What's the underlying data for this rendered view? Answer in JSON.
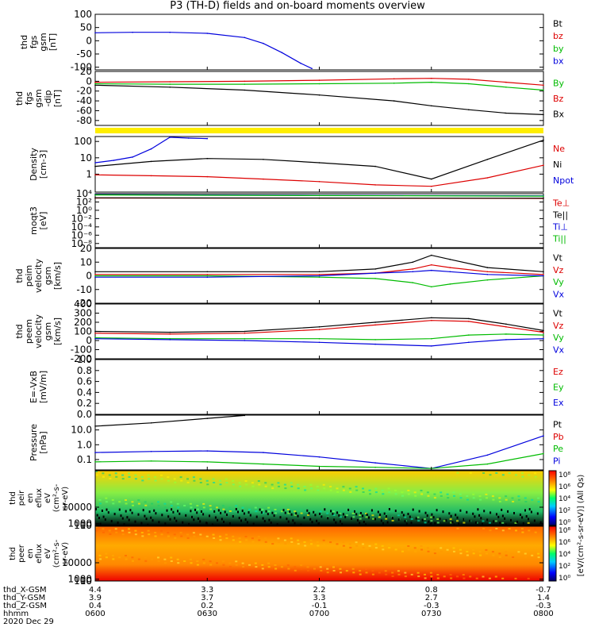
{
  "title": "P3 (TH-D) fields and on-board moments overview",
  "chart_data": [
    {
      "id": "fgs_b",
      "type": "line",
      "ylabel": [
        "thd",
        "fgs",
        "gsm",
        "[nT]"
      ],
      "ylim": [
        -110,
        100
      ],
      "yticks": [
        "100",
        "50",
        "0",
        "-50",
        "-100"
      ],
      "ytick_values": [
        100,
        50,
        0,
        -50,
        -100
      ],
      "legend": [
        {
          "name": "Bt",
          "color": "#000000"
        },
        {
          "name": "bz",
          "color": "#dd0000"
        },
        {
          "name": "by",
          "color": "#00bb00"
        },
        {
          "name": "bx",
          "color": "#0000dd"
        }
      ],
      "series": [
        {
          "name": "bx",
          "color": "#0000dd",
          "x": [
            "06:00",
            "06:10",
            "06:20",
            "06:30",
            "06:40",
            "06:45",
            "06:50",
            "06:55",
            "06:58"
          ],
          "values": [
            30,
            32,
            32,
            28,
            12,
            -10,
            -45,
            -85,
            -105
          ]
        }
      ]
    },
    {
      "id": "fgs_b_2",
      "type": "line",
      "ylabel": [
        "thd",
        "fgs",
        "gsm",
        "-dip",
        "[nT]"
      ],
      "ylim": [
        -90,
        20
      ],
      "yticks": [
        "20",
        "0",
        "-20",
        "-40",
        "-60",
        "-80"
      ],
      "ytick_values": [
        20,
        0,
        -20,
        -40,
        -60,
        -80
      ],
      "legend": [
        {
          "name": "By",
          "color": "#00bb00"
        },
        {
          "name": "Bz",
          "color": "#dd0000"
        },
        {
          "name": "Bx",
          "color": "#000000"
        }
      ],
      "series": [
        {
          "name": "Bz",
          "color": "#dd0000",
          "x": [
            "06:00",
            "06:20",
            "06:40",
            "07:00",
            "07:20",
            "07:30",
            "07:40",
            "07:50",
            "08:00"
          ],
          "values": [
            -2,
            -1,
            0,
            2,
            5,
            6,
            4,
            -2,
            -8
          ]
        },
        {
          "name": "By",
          "color": "#00bb00",
          "x": [
            "06:00",
            "06:20",
            "06:40",
            "07:00",
            "07:20",
            "07:30",
            "07:40",
            "07:50",
            "08:00"
          ],
          "values": [
            -5,
            -6,
            -6,
            -5,
            -4,
            -2,
            -5,
            -12,
            -18
          ]
        },
        {
          "name": "Bx",
          "color": "#000000",
          "x": [
            "06:00",
            "06:20",
            "06:40",
            "07:00",
            "07:20",
            "07:30",
            "07:40",
            "07:50",
            "08:00"
          ],
          "values": [
            -8,
            -12,
            -18,
            -28,
            -40,
            -50,
            -58,
            -65,
            -68
          ]
        }
      ]
    },
    {
      "id": "density",
      "type": "line",
      "log": true,
      "ylabel": [
        "Density",
        "[cm-3]"
      ],
      "ylim": [
        0.08,
        200
      ],
      "yticks": [
        "100",
        "10",
        "1"
      ],
      "ytick_values": [
        100,
        10,
        1
      ],
      "legend": [
        {
          "name": "Ne",
          "color": "#dd0000"
        },
        {
          "name": "Ni",
          "color": "#000000"
        },
        {
          "name": "Npot",
          "color": "#0000dd"
        }
      ],
      "series": [
        {
          "name": "Npot",
          "color": "#0000dd",
          "x": [
            "06:00",
            "06:05",
            "06:10",
            "06:15",
            "06:20",
            "06:25",
            "06:30"
          ],
          "values": [
            5,
            7,
            11,
            35,
            180,
            160,
            150
          ]
        },
        {
          "name": "Ni",
          "color": "#000000",
          "x": [
            "06:00",
            "06:15",
            "06:30",
            "06:45",
            "07:00",
            "07:15",
            "07:30",
            "07:45",
            "08:00"
          ],
          "values": [
            3,
            6,
            9,
            8,
            5,
            3,
            0.5,
            8,
            120
          ]
        },
        {
          "name": "Ne",
          "color": "#dd0000",
          "x": [
            "06:00",
            "06:15",
            "06:30",
            "06:45",
            "07:00",
            "07:15",
            "07:30",
            "07:45",
            "08:00"
          ],
          "values": [
            0.9,
            0.8,
            0.7,
            0.5,
            0.35,
            0.22,
            0.18,
            0.6,
            3.5
          ]
        }
      ]
    },
    {
      "id": "temperature",
      "type": "line",
      "log": true,
      "ylabel": [
        "moqt3",
        "[eV]"
      ],
      "ylim": [
        1e-09,
        10000.0
      ],
      "yticks": [
        "10⁴",
        "10²",
        "10⁰",
        "10⁻²",
        "10⁻⁴",
        "10⁻⁶",
        "10⁻⁸"
      ],
      "ytick_values": [
        10000.0,
        100.0,
        1,
        0.01,
        0.0001,
        1e-06,
        1e-08
      ],
      "legend": [
        {
          "name": "Te⊥",
          "color": "#dd0000"
        },
        {
          "name": "Te||",
          "color": "#000000"
        },
        {
          "name": "Ti⊥",
          "color": "#0000dd"
        },
        {
          "name": "Ti||",
          "color": "#00bb00"
        }
      ],
      "series": [
        {
          "name": "Ti⊥",
          "color": "#0000dd",
          "x": [
            "06:00",
            "07:00",
            "08:00"
          ],
          "values": [
            6000,
            4000,
            3000
          ]
        },
        {
          "name": "Ti||",
          "color": "#00bb00",
          "x": [
            "06:00",
            "07:00",
            "08:00"
          ],
          "values": [
            5000,
            3500,
            2500
          ]
        },
        {
          "name": "Te⊥",
          "color": "#dd0000",
          "x": [
            "06:00",
            "07:00",
            "08:00"
          ],
          "values": [
            900,
            800,
            700
          ]
        },
        {
          "name": "Te||",
          "color": "#000000",
          "x": [
            "06:00",
            "07:00",
            "08:00"
          ],
          "values": [
            1000,
            900,
            800
          ]
        }
      ]
    },
    {
      "id": "peim_velocity",
      "type": "line",
      "ylabel": [
        "thd",
        "peim",
        "velocity",
        "gsm",
        "[km/s]"
      ],
      "ylim": [
        -20,
        20
      ],
      "yticks": [
        "20",
        "10",
        "0",
        "-10",
        "-20"
      ],
      "ytick_values": [
        20,
        10,
        0,
        -10,
        -20
      ],
      "legend": [
        {
          "name": "Vt",
          "color": "#000000"
        },
        {
          "name": "Vz",
          "color": "#dd0000"
        },
        {
          "name": "Vy",
          "color": "#00bb00"
        },
        {
          "name": "Vx",
          "color": "#0000dd"
        }
      ],
      "series": [
        {
          "name": "Vt",
          "color": "#000000",
          "x": [
            "06:00",
            "06:30",
            "07:00",
            "07:15",
            "07:25",
            "07:30",
            "07:35",
            "07:45",
            "08:00"
          ],
          "values": [
            3,
            3,
            3,
            5,
            10,
            15,
            12,
            6,
            3
          ]
        },
        {
          "name": "Vz",
          "color": "#dd0000",
          "x": [
            "06:00",
            "06:30",
            "07:00",
            "07:15",
            "07:25",
            "07:30",
            "07:35",
            "07:45",
            "08:00"
          ],
          "values": [
            1,
            1,
            1,
            2,
            5,
            8,
            6,
            3,
            1
          ]
        },
        {
          "name": "Vy",
          "color": "#00bb00",
          "x": [
            "06:00",
            "06:30",
            "07:00",
            "07:15",
            "07:25",
            "07:30",
            "07:35",
            "07:45",
            "08:00"
          ],
          "values": [
            0,
            0,
            -1,
            -2,
            -5,
            -8,
            -6,
            -3,
            0
          ]
        },
        {
          "name": "Vx",
          "color": "#0000dd",
          "x": [
            "06:00",
            "06:30",
            "07:00",
            "07:15",
            "07:25",
            "07:30",
            "07:35",
            "07:45",
            "08:00"
          ],
          "values": [
            -1,
            -1,
            0,
            2,
            3,
            4,
            3,
            1,
            0
          ]
        }
      ]
    },
    {
      "id": "peem_velocity",
      "type": "line",
      "ylabel": [
        "thd",
        "peem",
        "velocity",
        "gsm",
        "[km/s]"
      ],
      "ylim": [
        -200,
        400
      ],
      "yticks": [
        "400",
        "300",
        "200",
        "100",
        "0",
        "-100",
        "-200"
      ],
      "ytick_values": [
        400,
        300,
        200,
        100,
        0,
        -100,
        -200
      ],
      "legend": [
        {
          "name": "Vt",
          "color": "#000000"
        },
        {
          "name": "Vz",
          "color": "#dd0000"
        },
        {
          "name": "Vy",
          "color": "#00bb00"
        },
        {
          "name": "Vx",
          "color": "#0000dd"
        }
      ],
      "series": [
        {
          "name": "Vt",
          "color": "#000000",
          "x": [
            "06:00",
            "06:20",
            "06:40",
            "07:00",
            "07:15",
            "07:30",
            "07:40",
            "07:50",
            "08:00"
          ],
          "values": [
            100,
            90,
            100,
            150,
            200,
            250,
            240,
            180,
            110
          ]
        },
        {
          "name": "Vz",
          "color": "#dd0000",
          "x": [
            "06:00",
            "06:20",
            "06:40",
            "07:00",
            "07:15",
            "07:30",
            "07:40",
            "07:50",
            "08:00"
          ],
          "values": [
            80,
            70,
            80,
            120,
            170,
            220,
            210,
            150,
            90
          ]
        },
        {
          "name": "Vy",
          "color": "#00bb00",
          "x": [
            "06:00",
            "06:20",
            "06:40",
            "07:00",
            "07:15",
            "07:30",
            "07:40",
            "07:50",
            "08:00"
          ],
          "values": [
            30,
            20,
            20,
            20,
            10,
            20,
            60,
            70,
            60
          ]
        },
        {
          "name": "Vx",
          "color": "#0000dd",
          "x": [
            "06:00",
            "06:20",
            "06:40",
            "07:00",
            "07:15",
            "07:30",
            "07:40",
            "07:50",
            "08:00"
          ],
          "values": [
            20,
            10,
            0,
            -20,
            -40,
            -60,
            -20,
            10,
            20
          ]
        }
      ]
    },
    {
      "id": "efield",
      "type": "line",
      "ylabel": [
        "E=-VxB",
        "[mV/m]"
      ],
      "ylim": [
        0,
        1
      ],
      "yticks": [
        "1.0",
        "0.8",
        "0.6",
        "0.4",
        "0.2",
        "0.0"
      ],
      "ytick_values": [
        1.0,
        0.8,
        0.6,
        0.4,
        0.2,
        0.0
      ],
      "legend": [
        {
          "name": "Ez",
          "color": "#dd0000"
        },
        {
          "name": "Ey",
          "color": "#00bb00"
        },
        {
          "name": "Ex",
          "color": "#0000dd"
        }
      ],
      "series": []
    },
    {
      "id": "pressure",
      "type": "line",
      "log": true,
      "ylabel": [
        "Pressure",
        "[nPa]"
      ],
      "ylim": [
        0.02,
        100
      ],
      "yticks": [
        "10.0",
        "1.0",
        "0.1"
      ],
      "ytick_values": [
        10,
        1,
        0.1
      ],
      "legend": [
        {
          "name": "Pt",
          "color": "#000000"
        },
        {
          "name": "Pb",
          "color": "#dd0000"
        },
        {
          "name": "Pe",
          "color": "#00bb00"
        },
        {
          "name": "Pi",
          "color": "#0000dd"
        }
      ],
      "series": [
        {
          "name": "Pt",
          "color": "#000000",
          "x": [
            "06:00",
            "06:15",
            "06:30",
            "06:40"
          ],
          "values": [
            18,
            30,
            60,
            95
          ]
        },
        {
          "name": "Pi",
          "color": "#0000dd",
          "x": [
            "06:00",
            "06:15",
            "06:30",
            "06:45",
            "07:00",
            "07:15",
            "07:30",
            "07:45",
            "08:00"
          ],
          "values": [
            0.3,
            0.35,
            0.38,
            0.3,
            0.15,
            0.06,
            0.025,
            0.2,
            4
          ]
        },
        {
          "name": "Pe",
          "color": "#00bb00",
          "x": [
            "06:00",
            "06:15",
            "06:30",
            "06:45",
            "07:00",
            "07:15",
            "07:30",
            "07:45",
            "08:00"
          ],
          "values": [
            0.07,
            0.08,
            0.07,
            0.05,
            0.035,
            0.03,
            0.025,
            0.05,
            0.25
          ]
        }
      ]
    },
    {
      "id": "peir_spec",
      "type": "heatmap",
      "ylabel": [
        "thd",
        "peir",
        "en",
        "eflux",
        "eV",
        "(cm²-s-",
        "sr-eV)"
      ],
      "ylim": [
        5,
        30000
      ],
      "yticks": [
        "10000",
        "1000",
        "100",
        "10"
      ],
      "ytick_values": [
        10000,
        1000,
        100,
        10
      ]
    },
    {
      "id": "peer_spec",
      "type": "heatmap",
      "ylabel": [
        "thd",
        "peer",
        "en",
        "eflux",
        "eV",
        "(cm²-s-",
        "sr-eV)"
      ],
      "ylim": [
        5,
        30000
      ],
      "yticks": [
        "10000",
        "1000",
        "100",
        "10"
      ],
      "ytick_values": [
        10000,
        1000,
        100,
        10
      ]
    }
  ],
  "colorbar": {
    "label": "[eV/(cm²-s-sr-eV)] (All Qs)",
    "ticks": [
      "10⁸",
      "10⁶",
      "10⁴",
      "10²",
      "10⁰",
      "10⁸",
      "10⁶",
      "10⁴",
      "10²",
      "10⁰"
    ]
  },
  "xaxis": {
    "rows": [
      {
        "label": "thd_X-GSM",
        "values": [
          "4.4",
          "3.3",
          "2.2",
          "0.8",
          "-0.7"
        ]
      },
      {
        "label": "thd_Y-GSM",
        "values": [
          "3.9",
          "3.7",
          "3.3",
          "2.7",
          "1.4"
        ]
      },
      {
        "label": "thd_Z-GSM",
        "values": [
          "0.4",
          "0.2",
          "-0.1",
          "-0.3",
          "-0.3"
        ]
      },
      {
        "label": "hhmm",
        "values": [
          "0600",
          "0630",
          "0700",
          "0730",
          "0800"
        ]
      }
    ],
    "date": "2020 Dec 29"
  }
}
